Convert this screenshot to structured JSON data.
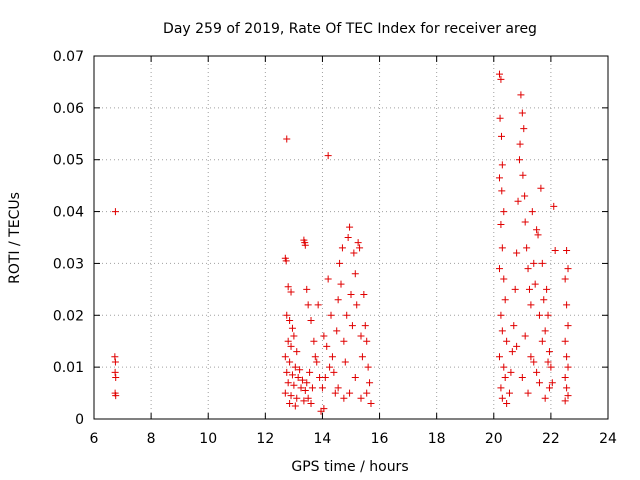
{
  "chart_data": {
    "type": "scatter",
    "title": "Day 259 of 2019, Rate Of TEC Index for receiver areg",
    "xlabel": "GPS time / hours",
    "ylabel": "ROTI / TECUs",
    "xlim": [
      6,
      24
    ],
    "ylim": [
      0,
      0.07
    ],
    "xticks": [
      6,
      8,
      10,
      12,
      14,
      16,
      18,
      20,
      22,
      24
    ],
    "xtick_labels": [
      "6",
      "8",
      "10",
      "12",
      "14",
      "16",
      "18",
      "20",
      "22",
      "24"
    ],
    "yticks": [
      0,
      0.01,
      0.02,
      0.03,
      0.04,
      0.05,
      0.06,
      0.07
    ],
    "ytick_labels": [
      "0",
      "0.01",
      "0.02",
      "0.03",
      "0.04",
      "0.05",
      "0.06",
      "0.07"
    ],
    "grid": true,
    "marker": "+",
    "color": "#e00000",
    "series": [
      {
        "name": "ROTI",
        "points": [
          [
            6.75,
            0.04
          ],
          [
            6.73,
            0.012
          ],
          [
            6.75,
            0.011
          ],
          [
            6.74,
            0.009
          ],
          [
            6.76,
            0.008
          ],
          [
            6.74,
            0.005
          ],
          [
            6.76,
            0.0045
          ],
          [
            12.75,
            0.054
          ],
          [
            12.7,
            0.031
          ],
          [
            12.73,
            0.0305
          ],
          [
            12.8,
            0.0255
          ],
          [
            12.9,
            0.0245
          ],
          [
            12.75,
            0.02
          ],
          [
            12.85,
            0.019
          ],
          [
            12.95,
            0.0175
          ],
          [
            13.0,
            0.016
          ],
          [
            12.8,
            0.015
          ],
          [
            12.9,
            0.014
          ],
          [
            13.1,
            0.013
          ],
          [
            12.7,
            0.012
          ],
          [
            12.85,
            0.011
          ],
          [
            13.05,
            0.01
          ],
          [
            13.2,
            0.0095
          ],
          [
            12.75,
            0.009
          ],
          [
            12.95,
            0.0085
          ],
          [
            13.15,
            0.008
          ],
          [
            13.3,
            0.0075
          ],
          [
            12.8,
            0.007
          ],
          [
            13.0,
            0.0065
          ],
          [
            13.25,
            0.006
          ],
          [
            13.4,
            0.0055
          ],
          [
            12.7,
            0.005
          ],
          [
            12.9,
            0.0045
          ],
          [
            13.1,
            0.004
          ],
          [
            13.35,
            0.0035
          ],
          [
            12.85,
            0.003
          ],
          [
            13.05,
            0.0025
          ],
          [
            13.45,
            0.007
          ],
          [
            13.55,
            0.009
          ],
          [
            13.65,
            0.006
          ],
          [
            13.75,
            0.012
          ],
          [
            13.5,
            0.004
          ],
          [
            13.6,
            0.003
          ],
          [
            13.35,
            0.0345
          ],
          [
            13.38,
            0.034
          ],
          [
            13.4,
            0.0335
          ],
          [
            13.45,
            0.025
          ],
          [
            13.5,
            0.022
          ],
          [
            13.6,
            0.019
          ],
          [
            13.7,
            0.015
          ],
          [
            13.8,
            0.011
          ],
          [
            13.9,
            0.008
          ],
          [
            14.0,
            0.006
          ],
          [
            14.05,
            0.002
          ],
          [
            13.95,
            0.0015
          ],
          [
            14.1,
            0.008
          ],
          [
            14.15,
            0.014
          ],
          [
            14.2,
            0.0508
          ],
          [
            14.25,
            0.01
          ],
          [
            14.3,
            0.02
          ],
          [
            14.2,
            0.027
          ],
          [
            14.35,
            0.012
          ],
          [
            14.4,
            0.009
          ],
          [
            14.45,
            0.005
          ],
          [
            14.5,
            0.017
          ],
          [
            14.55,
            0.023
          ],
          [
            14.6,
            0.03
          ],
          [
            14.65,
            0.026
          ],
          [
            14.7,
            0.033
          ],
          [
            14.75,
            0.015
          ],
          [
            14.8,
            0.011
          ],
          [
            14.85,
            0.02
          ],
          [
            14.9,
            0.035
          ],
          [
            14.95,
            0.037
          ],
          [
            15.0,
            0.024
          ],
          [
            15.05,
            0.018
          ],
          [
            15.1,
            0.032
          ],
          [
            15.15,
            0.028
          ],
          [
            15.2,
            0.022
          ],
          [
            15.25,
            0.034
          ],
          [
            15.3,
            0.033
          ],
          [
            15.35,
            0.016
          ],
          [
            15.4,
            0.012
          ],
          [
            15.45,
            0.024
          ],
          [
            15.5,
            0.018
          ],
          [
            15.55,
            0.015
          ],
          [
            15.6,
            0.01
          ],
          [
            15.65,
            0.007
          ],
          [
            15.7,
            0.003
          ],
          [
            14.55,
            0.006
          ],
          [
            14.75,
            0.004
          ],
          [
            14.95,
            0.005
          ],
          [
            15.15,
            0.008
          ],
          [
            15.35,
            0.004
          ],
          [
            15.55,
            0.005
          ],
          [
            13.85,
            0.022
          ],
          [
            14.05,
            0.016
          ],
          [
            20.2,
            0.0665
          ],
          [
            20.25,
            0.0655
          ],
          [
            20.22,
            0.058
          ],
          [
            20.27,
            0.0545
          ],
          [
            20.3,
            0.049
          ],
          [
            20.2,
            0.0465
          ],
          [
            20.28,
            0.044
          ],
          [
            20.35,
            0.04
          ],
          [
            20.25,
            0.0375
          ],
          [
            20.3,
            0.033
          ],
          [
            20.2,
            0.029
          ],
          [
            20.35,
            0.027
          ],
          [
            20.4,
            0.023
          ],
          [
            20.25,
            0.02
          ],
          [
            20.3,
            0.017
          ],
          [
            20.45,
            0.015
          ],
          [
            20.2,
            0.012
          ],
          [
            20.35,
            0.01
          ],
          [
            20.4,
            0.008
          ],
          [
            20.25,
            0.006
          ],
          [
            20.3,
            0.004
          ],
          [
            20.45,
            0.003
          ],
          [
            20.55,
            0.005
          ],
          [
            20.6,
            0.009
          ],
          [
            20.65,
            0.013
          ],
          [
            20.7,
            0.018
          ],
          [
            20.75,
            0.025
          ],
          [
            20.8,
            0.032
          ],
          [
            20.85,
            0.042
          ],
          [
            20.9,
            0.05
          ],
          [
            20.95,
            0.0625
          ],
          [
            21.0,
            0.059
          ],
          [
            21.05,
            0.056
          ],
          [
            20.92,
            0.053
          ],
          [
            21.02,
            0.047
          ],
          [
            21.08,
            0.043
          ],
          [
            21.1,
            0.038
          ],
          [
            21.15,
            0.033
          ],
          [
            21.2,
            0.029
          ],
          [
            21.25,
            0.025
          ],
          [
            21.3,
            0.022
          ],
          [
            21.35,
            0.04
          ],
          [
            21.4,
            0.03
          ],
          [
            21.45,
            0.026
          ],
          [
            21.5,
            0.0365
          ],
          [
            21.55,
            0.0355
          ],
          [
            21.6,
            0.02
          ],
          [
            21.65,
            0.0445
          ],
          [
            21.7,
            0.03
          ],
          [
            21.75,
            0.023
          ],
          [
            21.8,
            0.017
          ],
          [
            21.85,
            0.025
          ],
          [
            21.9,
            0.02
          ],
          [
            21.95,
            0.013
          ],
          [
            22.0,
            0.01
          ],
          [
            22.05,
            0.007
          ],
          [
            22.1,
            0.041
          ],
          [
            22.15,
            0.0325
          ],
          [
            21.0,
            0.008
          ],
          [
            21.2,
            0.005
          ],
          [
            21.4,
            0.011
          ],
          [
            21.6,
            0.007
          ],
          [
            21.8,
            0.004
          ],
          [
            21.95,
            0.006
          ],
          [
            20.8,
            0.014
          ],
          [
            21.1,
            0.016
          ],
          [
            21.3,
            0.012
          ],
          [
            21.5,
            0.009
          ],
          [
            21.7,
            0.015
          ],
          [
            21.9,
            0.011
          ],
          [
            22.55,
            0.0325
          ],
          [
            22.6,
            0.029
          ],
          [
            22.5,
            0.027
          ],
          [
            22.55,
            0.022
          ],
          [
            22.6,
            0.018
          ],
          [
            22.5,
            0.015
          ],
          [
            22.55,
            0.012
          ],
          [
            22.6,
            0.01
          ],
          [
            22.5,
            0.008
          ],
          [
            22.55,
            0.006
          ],
          [
            22.6,
            0.0045
          ],
          [
            22.5,
            0.0035
          ]
        ]
      }
    ]
  }
}
